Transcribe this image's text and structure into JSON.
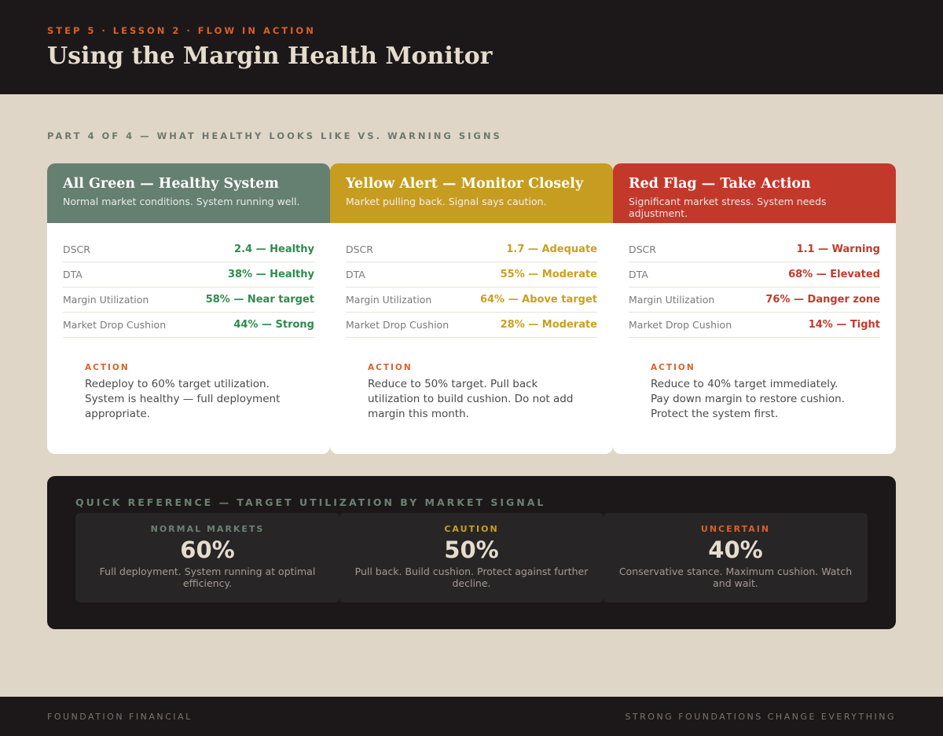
{
  "header": {
    "eyebrow": "STEP 5 · LESSON 2 · FLOW IN ACTION",
    "title": "Using the Margin Health Monitor"
  },
  "part_label": "PART 4 OF 4 — WHAT HEALTHY LOOKS LIKE VS. WARNING SIGNS",
  "cards": [
    {
      "title": "All Green — Healthy System",
      "subtitle": "Normal market conditions. System running well.",
      "color": "#657f71",
      "metrics": [
        {
          "label": "DSCR",
          "value": "2.4 — Healthy"
        },
        {
          "label": "DTA",
          "value": "38% — Healthy"
        },
        {
          "label": "Margin Utilization",
          "value": "58% — Near target"
        },
        {
          "label": "Market Drop Cushion",
          "value": "44% — Strong"
        }
      ],
      "action_label": "ACTION",
      "action_text": "Redeploy to 60% target utilization. System is healthy — full deployment appropriate."
    },
    {
      "title": "Yellow Alert — Monitor Closely",
      "subtitle": "Market pulling back. Signal says caution.",
      "color": "#c69d20",
      "metrics": [
        {
          "label": "DSCR",
          "value": "1.7 — Adequate"
        },
        {
          "label": "DTA",
          "value": "55% — Moderate"
        },
        {
          "label": "Margin Utilization",
          "value": "64% — Above target"
        },
        {
          "label": "Market Drop Cushion",
          "value": "28% — Moderate"
        }
      ],
      "action_label": "ACTION",
      "action_text": "Reduce to 50% target. Pull back utilization to build cushion. Do not add margin this month."
    },
    {
      "title": "Red Flag — Take Action",
      "subtitle": "Significant market stress. System needs adjustment.",
      "color": "#c2392c",
      "metrics": [
        {
          "label": "DSCR",
          "value": "1.1 — Warning"
        },
        {
          "label": "DTA",
          "value": "68% — Elevated"
        },
        {
          "label": "Margin Utilization",
          "value": "76% — Danger zone"
        },
        {
          "label": "Market Drop Cushion",
          "value": "14% — Tight"
        }
      ],
      "action_label": "ACTION",
      "action_text": "Reduce to 40% target immediately. Pay down margin to restore cushion. Protect the system first."
    }
  ],
  "quick_reference": {
    "title": "QUICK REFERENCE — TARGET UTILIZATION BY MARKET SIGNAL",
    "items": [
      {
        "label": "NORMAL MARKETS",
        "percent": "60%",
        "description": "Full deployment. System running at optimal efficiency.",
        "color": "#6a8272"
      },
      {
        "label": "CAUTION",
        "percent": "50%",
        "description": "Pull back. Build cushion. Protect against further decline.",
        "color": "#c9a020"
      },
      {
        "label": "UNCERTAIN",
        "percent": "40%",
        "description": "Conservative stance. Maximum cushion. Watch and wait.",
        "color": "#d8612a"
      }
    ]
  },
  "footer": {
    "left": "FOUNDATION FINANCIAL",
    "right": "STRONG FOUNDATIONS CHANGE EVERYTHING"
  }
}
